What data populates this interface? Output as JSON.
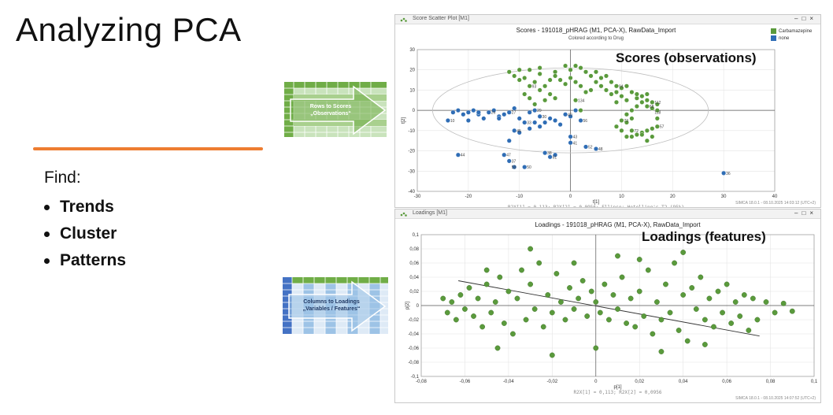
{
  "slide": {
    "title": "Analyzing PCA",
    "find_label": "Find:",
    "bullets": [
      "Trends",
      "Cluster",
      "Patterns"
    ]
  },
  "thumbs": {
    "rows_to_scores": {
      "line1": "Rows to Scores",
      "line2": "„Observations“"
    },
    "cols_to_loadings": {
      "line1": "Columns to Loadings",
      "line2": "„Variables / Features“"
    }
  },
  "colors": {
    "carbamazepine": "#5a9a3c",
    "none": "#2f6db5",
    "accent": "#ee7d31"
  },
  "scores_window": {
    "window_title": "Score Scatter Plot [M1]",
    "overlay_label": "Scores (observations)",
    "footer": "SIMCA 18.0.1 - 08.10.2025 14:03:12 (UTC+2)",
    "legend": [
      {
        "label": "Carbamazepine",
        "color": "#5a9a3c"
      },
      {
        "label": "none",
        "color": "#2f6db5"
      }
    ]
  },
  "loadings_window": {
    "window_title": "Loadings [M1]",
    "overlay_label": "Loadings (features)",
    "footer": "SIMCA 18.0.1 - 08.10.2025 14:07:52 (UTC+2)"
  },
  "chart_data": [
    {
      "type": "scatter",
      "title": "Scores - 191018_pHRAG (M1, PCA-X), RawData_Import",
      "subtitle": "Colored according to Drug",
      "xlabel": "t[1]",
      "ylabel": "t[2]",
      "caption": "R2X[1] = 0,113; R2X[2] = 0,0956; Ellipse: Hotelling's T2 (95%)",
      "xlim": [
        -30,
        40
      ],
      "ylim": [
        -40,
        30
      ],
      "xticks": [
        -30,
        -20,
        -10,
        0,
        10,
        20,
        30,
        40
      ],
      "yticks": [
        -40,
        -30,
        -20,
        -10,
        0,
        10,
        20,
        30
      ],
      "ellipse": {
        "center": [
          0,
          0
        ],
        "radius_x": 27,
        "radius_y": 21
      },
      "series": [
        {
          "name": "Carbamazepine",
          "points": [
            [
              -10,
              20
            ],
            [
              -8,
              20
            ],
            [
              -6,
              21
            ],
            [
              -3,
              19
            ],
            [
              -1,
              22
            ],
            [
              0,
              20
            ],
            [
              1,
              22
            ],
            [
              2,
              21
            ],
            [
              3,
              19
            ],
            [
              4,
              17
            ],
            [
              5,
              14
            ],
            [
              6,
              16
            ],
            [
              7,
              17
            ],
            [
              8,
              14
            ],
            [
              9,
              12
            ],
            [
              10,
              11
            ],
            [
              11,
              12
            ],
            [
              12,
              9
            ],
            [
              13,
              6
            ],
            [
              14,
              4
            ],
            [
              15,
              2
            ],
            [
              16,
              1
            ],
            [
              17,
              0
            ],
            [
              17,
              3
            ],
            [
              15,
              5
            ],
            [
              13,
              2
            ],
            [
              12,
              0
            ],
            [
              11,
              -2
            ],
            [
              10,
              -5
            ],
            [
              9,
              -8
            ],
            [
              10,
              -10
            ],
            [
              11,
              -13
            ],
            [
              12,
              -13
            ],
            [
              13,
              -12
            ],
            [
              14,
              -11
            ],
            [
              15,
              -10
            ],
            [
              16,
              -9
            ],
            [
              17,
              -8
            ],
            [
              16,
              -13
            ],
            [
              15,
              -15
            ],
            [
              14,
              -12
            ],
            [
              12,
              -10
            ],
            [
              11,
              -6
            ],
            [
              -11,
              17
            ],
            [
              -10,
              15
            ],
            [
              -9,
              16
            ],
            [
              -8,
              12
            ],
            [
              -7,
              14
            ],
            [
              -6,
              10
            ],
            [
              -5,
              12
            ],
            [
              -4,
              15
            ],
            [
              -3,
              17
            ],
            [
              -2,
              15
            ],
            [
              -1,
              13
            ],
            [
              0,
              16
            ],
            [
              1,
              14
            ],
            [
              2,
              12
            ],
            [
              3,
              9
            ],
            [
              4,
              10
            ],
            [
              -9,
              8
            ],
            [
              -8,
              6
            ],
            [
              -7,
              3
            ],
            [
              -5,
              5
            ],
            [
              -4,
              8
            ],
            [
              -3,
              6
            ],
            [
              1,
              5
            ],
            [
              2,
              0
            ],
            [
              7,
              10
            ],
            [
              8,
              8
            ],
            [
              9,
              9
            ],
            [
              10,
              7
            ],
            [
              11,
              5
            ],
            [
              13,
              8
            ],
            [
              14,
              7
            ],
            [
              16,
              4
            ],
            [
              15,
              8
            ],
            [
              17,
              -4
            ],
            [
              12,
              -4
            ],
            [
              -12,
              19
            ],
            [
              -6,
              18
            ],
            [
              5,
              19
            ],
            [
              6,
              12
            ],
            [
              9,
              4
            ]
          ]
        },
        {
          "name": "none",
          "points": [
            [
              -24,
              -5
            ],
            [
              -23,
              -1
            ],
            [
              -22,
              0
            ],
            [
              -21,
              -2
            ],
            [
              -20,
              -1
            ],
            [
              -19,
              0
            ],
            [
              -18,
              -2
            ],
            [
              -17,
              -4
            ],
            [
              -16,
              -1
            ],
            [
              -15,
              0
            ],
            [
              -14,
              -3
            ],
            [
              -13,
              -2
            ],
            [
              -12,
              -1
            ],
            [
              -11,
              1
            ],
            [
              -10,
              -4
            ],
            [
              -9,
              -6
            ],
            [
              -8,
              -1
            ],
            [
              -7,
              0
            ],
            [
              -6,
              -3
            ],
            [
              -5,
              -6
            ],
            [
              -4,
              -4
            ],
            [
              -3,
              -5
            ],
            [
              -2,
              -7
            ],
            [
              -1,
              -2
            ],
            [
              0,
              -3
            ],
            [
              1,
              0
            ],
            [
              -11,
              -10
            ],
            [
              -10,
              -11
            ],
            [
              -12,
              -15
            ],
            [
              -13,
              -22
            ],
            [
              -12,
              -25
            ],
            [
              -11,
              -28
            ],
            [
              -9,
              -28
            ],
            [
              -5,
              -21
            ],
            [
              -4,
              -23
            ],
            [
              -3,
              -22
            ],
            [
              -8,
              -9
            ],
            [
              -7,
              -6
            ],
            [
              0,
              -13
            ],
            [
              0,
              -16
            ],
            [
              2,
              -5
            ],
            [
              3,
              -18
            ],
            [
              5,
              -19
            ],
            [
              -22,
              -22
            ],
            [
              -20,
              -5
            ],
            [
              30,
              -31
            ],
            [
              -14,
              -4
            ],
            [
              -18,
              -1
            ],
            [
              -6,
              -8
            ]
          ]
        }
      ],
      "point_labels": [
        "44",
        "45",
        "47",
        "53",
        "50",
        "37",
        "38",
        "51",
        "52",
        "48",
        "56",
        "41",
        "43",
        "40",
        "134",
        "36",
        "10",
        "26",
        "27",
        "29",
        "33",
        "30",
        "94",
        "93",
        "112",
        "73",
        "68",
        "118",
        "72",
        "57"
      ]
    },
    {
      "type": "scatter",
      "title": "Loadings - 191018_pHRAG (M1, PCA-X), RawData_Import",
      "xlabel": "p[1]",
      "ylabel": "p[2]",
      "caption": "R2X[1] = 0,113; R2X[2] = 0,0956",
      "xlim": [
        -0.08,
        0.1
      ],
      "ylim": [
        -0.1,
        0.1
      ],
      "xticks": [
        -0.08,
        -0.06,
        -0.04,
        -0.02,
        0,
        0.02,
        0.04,
        0.06,
        0.08,
        0.1
      ],
      "yticks": [
        -0.1,
        -0.08,
        -0.06,
        -0.04,
        -0.02,
        0,
        0.02,
        0.04,
        0.06,
        0.08,
        0.1
      ],
      "xtick_labels": [
        "-0,08",
        "-0,06",
        "-0,04",
        "-0,02",
        "0",
        "0,02",
        "0,04",
        "0,06",
        "0,08",
        "0,1"
      ],
      "ytick_labels": [
        "-0,1",
        "-0,08",
        "-0,06",
        "-0,04",
        "-0,02",
        "0",
        "0,02",
        "0,04",
        "0,06",
        "0,08",
        "0,1"
      ],
      "trend_line": {
        "from": [
          -0.063,
          0.035
        ],
        "to": [
          0.075,
          -0.043
        ]
      },
      "series": [
        {
          "name": "Variables",
          "points": [
            [
              -0.07,
              0.01
            ],
            [
              -0.068,
              -0.01
            ],
            [
              -0.066,
              0.005
            ],
            [
              -0.064,
              -0.02
            ],
            [
              -0.062,
              0.015
            ],
            [
              -0.06,
              -0.005
            ],
            [
              -0.058,
              0.025
            ],
            [
              -0.056,
              -0.015
            ],
            [
              -0.054,
              0.01
            ],
            [
              -0.052,
              -0.03
            ],
            [
              -0.05,
              0.03
            ],
            [
              -0.048,
              -0.01
            ],
            [
              -0.046,
              0.005
            ],
            [
              -0.044,
              0.04
            ],
            [
              -0.042,
              -0.025
            ],
            [
              -0.04,
              0.02
            ],
            [
              -0.038,
              -0.04
            ],
            [
              -0.036,
              0.01
            ],
            [
              -0.034,
              0.05
            ],
            [
              -0.032,
              -0.02
            ],
            [
              -0.03,
              0.03
            ],
            [
              -0.028,
              -0.005
            ],
            [
              -0.026,
              0.06
            ],
            [
              -0.024,
              -0.03
            ],
            [
              -0.022,
              0.015
            ],
            [
              -0.02,
              -0.01
            ],
            [
              -0.018,
              0.045
            ],
            [
              -0.016,
              0.005
            ],
            [
              -0.014,
              -0.02
            ],
            [
              -0.012,
              0.025
            ],
            [
              -0.01,
              -0.005
            ],
            [
              -0.008,
              0.01
            ],
            [
              -0.006,
              0.035
            ],
            [
              -0.004,
              -0.015
            ],
            [
              -0.002,
              0.02
            ],
            [
              0,
              0.005
            ],
            [
              0.002,
              -0.01
            ],
            [
              0.004,
              0.03
            ],
            [
              0.006,
              -0.02
            ],
            [
              0.008,
              0.015
            ],
            [
              0.01,
              -0.005
            ],
            [
              0.012,
              0.04
            ],
            [
              0.014,
              -0.025
            ],
            [
              0.016,
              0.01
            ],
            [
              0.018,
              -0.03
            ],
            [
              0.02,
              0.02
            ],
            [
              0.022,
              -0.015
            ],
            [
              0.024,
              0.05
            ],
            [
              0.026,
              -0.04
            ],
            [
              0.028,
              0.005
            ],
            [
              0.03,
              -0.02
            ],
            [
              0.032,
              0.03
            ],
            [
              0.034,
              -0.01
            ],
            [
              0.036,
              0.06
            ],
            [
              0.038,
              -0.035
            ],
            [
              0.04,
              0.015
            ],
            [
              0.042,
              -0.05
            ],
            [
              0.044,
              0.025
            ],
            [
              0.046,
              -0.005
            ],
            [
              0.048,
              0.04
            ],
            [
              0.05,
              -0.02
            ],
            [
              0.052,
              0.01
            ],
            [
              0.054,
              -0.03
            ],
            [
              0.056,
              0.02
            ],
            [
              0.058,
              -0.01
            ],
            [
              0.06,
              0.03
            ],
            [
              0.062,
              -0.025
            ],
            [
              0.064,
              0.005
            ],
            [
              0.066,
              -0.015
            ],
            [
              0.068,
              0.015
            ],
            [
              0.07,
              -0.035
            ],
            [
              0.072,
              0.01
            ],
            [
              0.074,
              -0.02
            ],
            [
              0.078,
              0.005
            ],
            [
              0.082,
              -0.01
            ],
            [
              0.086,
              0.003
            ],
            [
              0.09,
              -0.008
            ],
            [
              -0.03,
              0.08
            ],
            [
              -0.02,
              -0.07
            ],
            [
              0.01,
              0.07
            ],
            [
              0.03,
              -0.065
            ],
            [
              0.04,
              0.075
            ],
            [
              -0.045,
              -0.06
            ],
            [
              0.0,
              -0.06
            ],
            [
              0.02,
              0.065
            ],
            [
              -0.01,
              0.06
            ],
            [
              0.05,
              -0.055
            ],
            [
              -0.05,
              0.05
            ]
          ]
        }
      ]
    }
  ]
}
